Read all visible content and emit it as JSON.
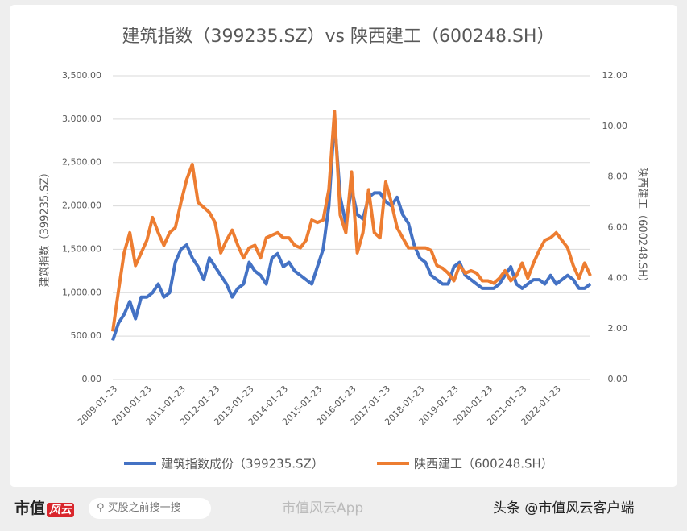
{
  "chart_data": {
    "type": "line",
    "title": "建筑指数（399235.SZ）vs 陕西建工（600248.SH）",
    "y_label": "建筑指数（399235.SZ）",
    "y2_label": "陕西建工（600248.SH）",
    "categories": [
      "2009-01-23",
      null,
      null,
      null,
      null,
      null,
      "2010-01-23",
      null,
      null,
      null,
      null,
      null,
      "2011-01-23",
      null,
      null,
      null,
      null,
      null,
      "2012-01-23",
      null,
      null,
      null,
      null,
      null,
      "2013-01-23",
      null,
      null,
      null,
      null,
      null,
      "2014-01-23",
      null,
      null,
      null,
      null,
      null,
      "2015-01-23",
      null,
      null,
      null,
      null,
      null,
      "2016-01-23",
      null,
      null,
      null,
      null,
      null,
      "2017-01-23",
      null,
      null,
      null,
      null,
      null,
      "2018-01-23",
      null,
      null,
      null,
      null,
      null,
      "2019-01-23",
      null,
      null,
      null,
      null,
      null,
      "2020-01-23",
      null,
      null,
      null,
      null,
      null,
      "2021-01-23",
      null,
      null,
      null,
      null,
      null,
      "2022-01-23",
      null,
      null,
      null,
      null,
      null,
      null
    ],
    "series": [
      {
        "name": "建筑指数成份（399235.SZ）",
        "color": "#4472c4",
        "axis": "y",
        "values": [
          450,
          650,
          750,
          900,
          700,
          950,
          950,
          1000,
          1100,
          950,
          1000,
          1350,
          1500,
          1550,
          1400,
          1300,
          1150,
          1400,
          1300,
          1200,
          1100,
          950,
          1050,
          1100,
          1350,
          1250,
          1200,
          1100,
          1400,
          1450,
          1300,
          1350,
          1250,
          1200,
          1150,
          1100,
          1300,
          1500,
          2000,
          3000,
          2100,
          1800,
          2200,
          1900,
          1850,
          2100,
          2150,
          2150,
          2050,
          2000,
          2100,
          1900,
          1800,
          1550,
          1400,
          1350,
          1200,
          1150,
          1100,
          1100,
          1300,
          1350,
          1200,
          1150,
          1100,
          1050,
          1050,
          1050,
          1100,
          1200,
          1300,
          1100,
          1050,
          1100,
          1150,
          1150,
          1100,
          1200,
          1100,
          1150,
          1200,
          1150,
          1050,
          1050,
          1100
        ]
      },
      {
        "name": "陕西建工（600248.SH）",
        "color": "#ed7d31",
        "axis": "y2",
        "values": [
          1.9,
          3.5,
          5.0,
          5.8,
          4.5,
          5.0,
          5.5,
          6.4,
          5.8,
          5.3,
          5.8,
          6.0,
          7.0,
          7.9,
          8.5,
          7.0,
          6.8,
          6.6,
          6.2,
          5.0,
          5.5,
          5.9,
          5.3,
          4.8,
          5.2,
          5.3,
          4.8,
          5.6,
          5.7,
          5.8,
          5.6,
          5.6,
          5.3,
          5.2,
          5.5,
          6.3,
          6.2,
          6.3,
          7.5,
          10.6,
          6.5,
          5.8,
          8.2,
          5.0,
          5.8,
          7.5,
          5.8,
          5.6,
          7.8,
          7.0,
          6.0,
          5.6,
          5.2,
          5.2,
          5.2,
          5.2,
          5.1,
          4.5,
          4.4,
          4.2,
          3.9,
          4.5,
          4.2,
          4.3,
          4.2,
          3.9,
          3.9,
          3.8,
          4.0,
          4.3,
          3.9,
          4.1,
          4.6,
          4.0,
          4.6,
          5.1,
          5.5,
          5.6,
          5.8,
          5.5,
          5.2,
          4.5,
          4.0,
          4.6,
          4.1
        ]
      }
    ],
    "ylim": [
      0,
      3500
    ],
    "yticks": [
      {
        "value": 0,
        "label": "0.00"
      },
      {
        "value": 500,
        "label": "500.00"
      },
      {
        "value": 1000,
        "label": "1,000.00"
      },
      {
        "value": 1500,
        "label": "1,500.00"
      },
      {
        "value": 2000,
        "label": "2,000.00"
      },
      {
        "value": 2500,
        "label": "2,500.00"
      },
      {
        "value": 3000,
        "label": "3,000.00"
      },
      {
        "value": 3500,
        "label": "3,500.00"
      }
    ],
    "y2lim": [
      0,
      12
    ],
    "y2ticks": [
      {
        "value": 0,
        "label": "0.00"
      },
      {
        "value": 2,
        "label": "2.00"
      },
      {
        "value": 4,
        "label": "4.00"
      },
      {
        "value": 6,
        "label": "6.00"
      },
      {
        "value": 8,
        "label": "8.00"
      },
      {
        "value": 10,
        "label": "10.00"
      },
      {
        "value": 12,
        "label": "12.00"
      }
    ],
    "grid": true,
    "legend": "bottom"
  },
  "footer": {
    "brand": "市值",
    "brand_logo": "风云",
    "search": "买股之前搜一搜",
    "app": "市值风云App",
    "source": "头条 @市值风云客户端"
  }
}
